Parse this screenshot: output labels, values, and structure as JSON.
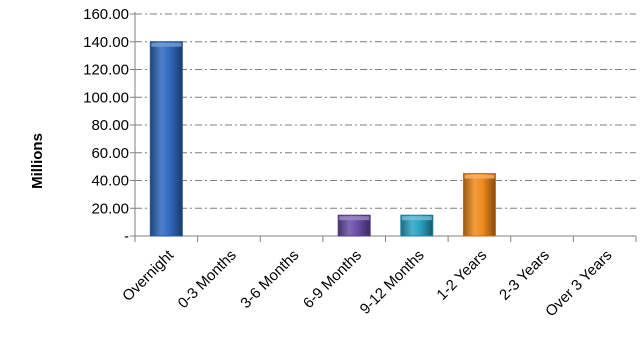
{
  "chart_data": {
    "type": "bar",
    "title": "",
    "xlabel": "",
    "ylabel": "Millions",
    "ylim": [
      0,
      160
    ],
    "yticks": [
      0,
      20,
      40,
      60,
      80,
      100,
      120,
      140,
      160
    ],
    "ytick_labels": [
      "-",
      "20.00",
      "40.00",
      "60.00",
      "80.00",
      "100.00",
      "120.00",
      "140.00",
      "160.00"
    ],
    "grid": true,
    "legend": "none",
    "categories": [
      "Overnight",
      "0-3 Months",
      "3-6 Months",
      "6-9 Months",
      "9-12 Months",
      "1-2 Years",
      "2-3 Years",
      "Over 3 Years"
    ],
    "values": [
      140,
      0,
      0,
      15,
      15,
      45,
      0,
      0
    ],
    "colors": [
      "#2f6bbf",
      "#2f6bbf",
      "#2f6bbf",
      "#6a4fa8",
      "#2aa3c4",
      "#f08a1c",
      "#2f6bbf",
      "#2f6bbf"
    ]
  }
}
